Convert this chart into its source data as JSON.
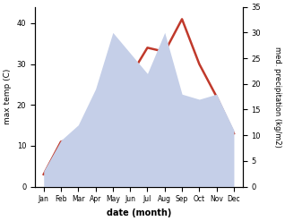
{
  "months": [
    "Jan",
    "Feb",
    "Mar",
    "Apr",
    "May",
    "Jun",
    "Jul",
    "Aug",
    "Sep",
    "Oct",
    "Nov",
    "Dec"
  ],
  "month_positions": [
    1,
    2,
    3,
    4,
    5,
    6,
    7,
    8,
    9,
    10,
    11,
    12
  ],
  "temperature": [
    3.0,
    11.0,
    12.0,
    20.0,
    26.0,
    27.0,
    34.0,
    33.0,
    41.0,
    30.0,
    22.0,
    13.0
  ],
  "precipitation": [
    3.0,
    9.0,
    12.0,
    19.0,
    30.0,
    26.0,
    22.0,
    30.0,
    18.0,
    17.0,
    18.0,
    11.0
  ],
  "temp_color": "#c0392b",
  "precip_color": "#c5cfe8",
  "left_ylabel": "max temp (C)",
  "right_ylabel": "med. precipitation (kg/m2)",
  "xlabel": "date (month)",
  "left_ylim": [
    0,
    44
  ],
  "right_ylim": [
    0,
    35
  ],
  "left_yticks": [
    0,
    10,
    20,
    30,
    40
  ],
  "right_yticks": [
    0,
    5,
    10,
    15,
    20,
    25,
    30,
    35
  ],
  "temp_linewidth": 1.8,
  "background_color": "#ffffff"
}
